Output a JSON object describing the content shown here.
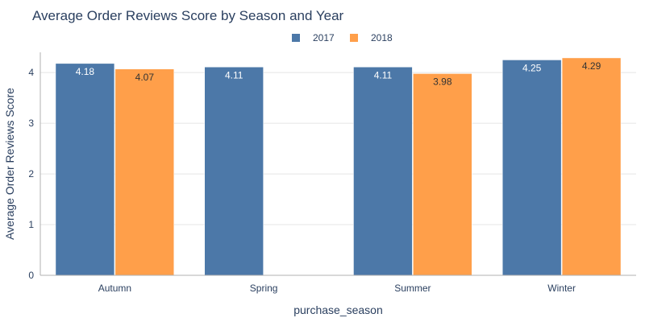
{
  "chart_data": {
    "type": "bar",
    "title": "Average Order Reviews Score by Season and Year",
    "xlabel": "purchase_season",
    "ylabel": "Average Order Reviews Score",
    "categories": [
      "Autumn",
      "Spring",
      "Summer",
      "Winter"
    ],
    "series": [
      {
        "name": "2017",
        "color": "#4c78a8",
        "label_color": "#ffffff",
        "values": [
          4.18,
          4.11,
          4.11,
          4.25
        ],
        "labels": [
          "4.18",
          "4.11",
          "4.11",
          "4.25"
        ]
      },
      {
        "name": "2018",
        "color": "#ff9f4a",
        "label_color": "#333333",
        "values": [
          4.07,
          null,
          3.98,
          4.29
        ],
        "labels": [
          "4.07",
          "",
          "3.98",
          "4.29"
        ]
      }
    ],
    "ylim": [
      0,
      4.4
    ],
    "yticks": [
      0,
      1,
      2,
      3,
      4
    ],
    "grid": true,
    "legend_position": "top-center"
  }
}
